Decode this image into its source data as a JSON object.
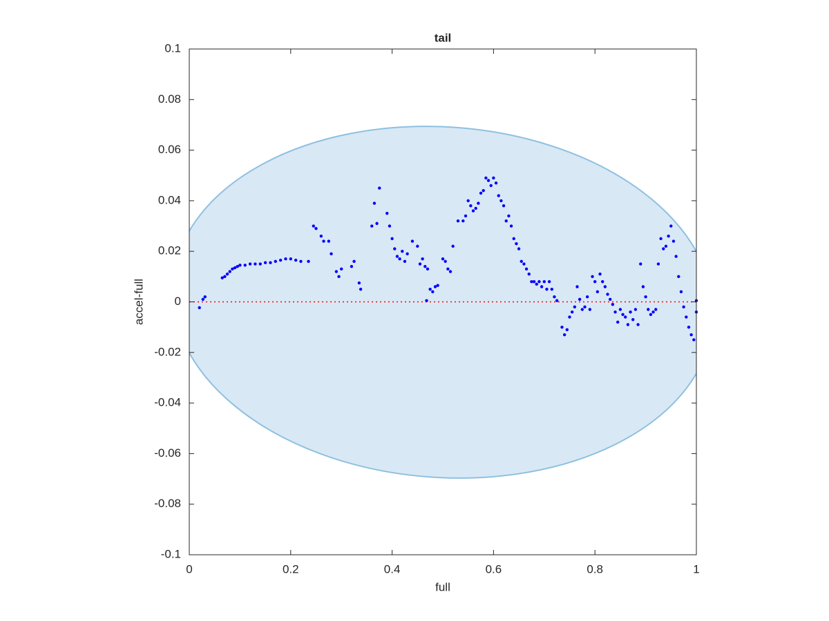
{
  "chart_data": {
    "type": "scatter",
    "title": "tail",
    "x_label": "full",
    "y_label": "accel-full",
    "color": "#0000ff",
    "xlim": [
      0,
      1
    ],
    "ylim": [
      -0.1,
      0.1
    ],
    "xticks": [
      0,
      0.2,
      0.4,
      0.6,
      0.8,
      1
    ],
    "yticks": [
      -0.1,
      -0.08,
      -0.06,
      -0.04,
      -0.02,
      0,
      0.02,
      0.04,
      0.06,
      0.08,
      0.1
    ],
    "x": [
      0.02,
      0.027,
      0.031,
      0.065,
      0.07,
      0.075,
      0.08,
      0.085,
      0.09,
      0.095,
      0.1,
      0.11,
      0.12,
      0.13,
      0.14,
      0.15,
      0.16,
      0.17,
      0.18,
      0.19,
      0.2,
      0.21,
      0.22,
      0.235,
      0.245,
      0.25,
      0.26,
      0.265,
      0.275,
      0.28,
      0.29,
      0.295,
      0.3,
      0.32,
      0.325,
      0.335,
      0.338,
      0.36,
      0.365,
      0.37,
      0.375,
      0.39,
      0.395,
      0.4,
      0.405,
      0.41,
      0.415,
      0.42,
      0.425,
      0.43,
      0.44,
      0.45,
      0.455,
      0.46,
      0.465,
      0.47,
      0.468,
      0.475,
      0.48,
      0.485,
      0.49,
      0.5,
      0.505,
      0.51,
      0.515,
      0.52,
      0.53,
      0.54,
      0.545,
      0.55,
      0.555,
      0.56,
      0.565,
      0.57,
      0.575,
      0.58,
      0.585,
      0.59,
      0.595,
      0.6,
      0.605,
      0.61,
      0.615,
      0.62,
      0.625,
      0.63,
      0.635,
      0.64,
      0.645,
      0.65,
      0.655,
      0.66,
      0.665,
      0.67,
      0.675,
      0.68,
      0.685,
      0.69,
      0.695,
      0.7,
      0.705,
      0.71,
      0.715,
      0.72,
      0.725,
      0.735,
      0.74,
      0.745,
      0.75,
      0.755,
      0.76,
      0.765,
      0.77,
      0.775,
      0.78,
      0.785,
      0.79,
      0.795,
      0.8,
      0.805,
      0.81,
      0.815,
      0.82,
      0.825,
      0.83,
      0.835,
      0.84,
      0.845,
      0.85,
      0.855,
      0.86,
      0.865,
      0.87,
      0.875,
      0.88,
      0.885,
      0.89,
      0.895,
      0.9,
      0.905,
      0.91,
      0.915,
      0.92,
      0.925,
      0.93,
      0.935,
      0.94,
      0.945,
      0.95,
      0.955,
      0.96,
      0.965,
      0.97,
      0.975,
      0.98,
      0.985,
      0.99,
      0.995,
      1.0,
      1.0
    ],
    "values": [
      -0.0023,
      0.001,
      0.002,
      0.0095,
      0.01,
      0.011,
      0.012,
      0.013,
      0.0135,
      0.014,
      0.0145,
      0.0145,
      0.015,
      0.015,
      0.015,
      0.0155,
      0.0155,
      0.016,
      0.0165,
      0.017,
      0.017,
      0.0165,
      0.016,
      0.016,
      0.03,
      0.029,
      0.026,
      0.024,
      0.024,
      0.019,
      0.012,
      0.01,
      0.013,
      0.014,
      0.016,
      0.0075,
      0.005,
      0.03,
      0.039,
      0.031,
      0.045,
      0.035,
      0.03,
      0.025,
      0.021,
      0.018,
      0.017,
      0.02,
      0.016,
      0.019,
      0.024,
      0.022,
      0.015,
      0.017,
      0.014,
      0.013,
      0.0005,
      0.005,
      0.004,
      0.006,
      0.0065,
      0.017,
      0.016,
      0.013,
      0.012,
      0.022,
      0.032,
      0.032,
      0.034,
      0.04,
      0.038,
      0.036,
      0.037,
      0.039,
      0.043,
      0.044,
      0.049,
      0.048,
      0.046,
      0.049,
      0.047,
      0.042,
      0.04,
      0.038,
      0.032,
      0.034,
      0.03,
      0.025,
      0.023,
      0.021,
      0.016,
      0.015,
      0.013,
      0.011,
      0.008,
      0.008,
      0.007,
      0.008,
      0.006,
      0.008,
      0.005,
      0.008,
      0.005,
      0.002,
      0.0005,
      -0.01,
      -0.013,
      -0.011,
      -0.006,
      -0.004,
      -0.002,
      0.006,
      0.001,
      -0.003,
      -0.002,
      0.002,
      -0.003,
      0.01,
      0.008,
      0.004,
      0.011,
      0.008,
      0.006,
      0.003,
      0.001,
      -0.001,
      -0.004,
      -0.008,
      -0.003,
      -0.005,
      -0.006,
      -0.009,
      -0.004,
      -0.007,
      -0.003,
      -0.009,
      0.015,
      0.006,
      0.002,
      -0.003,
      -0.005,
      -0.004,
      -0.003,
      0.015,
      0.025,
      0.021,
      0.022,
      0.026,
      0.03,
      0.024,
      0.018,
      0.01,
      0.004,
      -0.002,
      -0.006,
      -0.01,
      -0.013,
      -0.015,
      -0.004,
      0.0005
    ]
  }
}
